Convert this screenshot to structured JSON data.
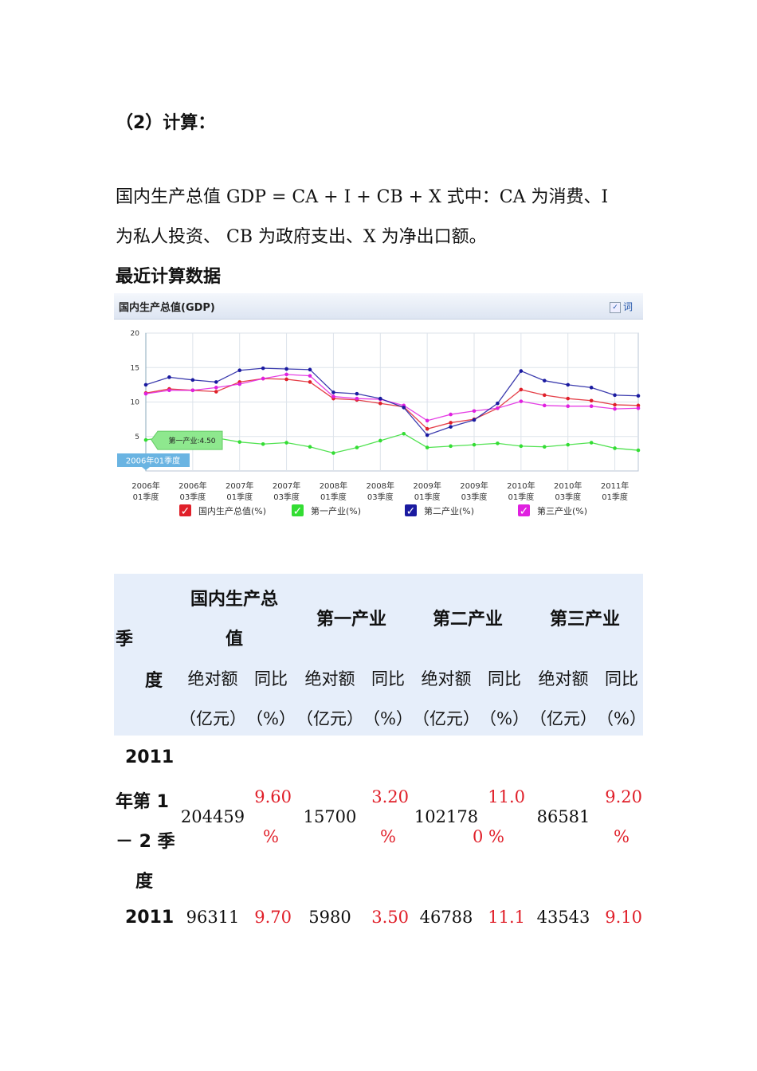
{
  "heading": "（2）计算：",
  "paragraph": {
    "line1": "国内生产总值 GDP = CA + I + CB + X  式中：CA 为消费、I",
    "line2": "为私人投资、  CB 为政府支出、X 为净出口额。"
  },
  "subheading": "最近计算数据",
  "chart_panel": {
    "title": "国内生产总值(GDP)",
    "button_label": "词",
    "tooltip_series": "第一产业:4.50",
    "tooltip_x": "2006年01季度"
  },
  "chart_data": {
    "type": "line",
    "title": "国内生产总值(GDP)",
    "ylim": [
      0,
      20
    ],
    "yticks": [
      "5",
      "10",
      "15",
      "20"
    ],
    "grid": true,
    "legend_placement": "bottom",
    "x": [
      "2006Q1",
      "2006Q2",
      "2006Q3",
      "2006Q4",
      "2007Q1",
      "2007Q2",
      "2007Q3",
      "2007Q4",
      "2008Q1",
      "2008Q2",
      "2008Q3",
      "2008Q4",
      "2009Q1",
      "2009Q2",
      "2009Q3",
      "2009Q4",
      "2010Q1",
      "2010Q2",
      "2010Q3",
      "2010Q4",
      "2011Q1",
      "2011Q2"
    ],
    "xtick_labels": [
      [
        "2006年",
        "01季度"
      ],
      [
        "2006年",
        "03季度"
      ],
      [
        "2007年",
        "01季度"
      ],
      [
        "2007年",
        "03季度"
      ],
      [
        "2008年",
        "01季度"
      ],
      [
        "2008年",
        "03季度"
      ],
      [
        "2009年",
        "01季度"
      ],
      [
        "2009年",
        "03季度"
      ],
      [
        "2010年",
        "01季度"
      ],
      [
        "2010年",
        "03季度"
      ],
      [
        "2011年",
        "01季度"
      ]
    ],
    "series": [
      {
        "name": "国内生产总值(%)",
        "color": "#e0202a",
        "values": [
          11.3,
          11.9,
          11.7,
          11.5,
          12.9,
          13.4,
          13.3,
          12.9,
          10.5,
          10.3,
          9.8,
          9.3,
          6.1,
          7.0,
          7.5,
          9.1,
          11.8,
          11.0,
          10.5,
          10.2,
          9.6,
          9.5
        ]
      },
      {
        "name": "第一产业(%)",
        "color": "#33dd33",
        "values": [
          4.5,
          5.0,
          4.9,
          4.8,
          4.2,
          3.9,
          4.1,
          3.5,
          2.6,
          3.4,
          4.4,
          5.4,
          3.4,
          3.6,
          3.8,
          4.0,
          3.6,
          3.5,
          3.8,
          4.1,
          3.3,
          3.0
        ]
      },
      {
        "name": "第二产业(%)",
        "color": "#1a1aa0",
        "values": [
          12.5,
          13.6,
          13.2,
          12.9,
          14.6,
          14.9,
          14.8,
          14.7,
          11.4,
          11.2,
          10.5,
          9.2,
          5.2,
          6.4,
          7.4,
          9.8,
          14.5,
          13.1,
          12.5,
          12.1,
          11.0,
          10.9
        ]
      },
      {
        "name": "第三产业(%)",
        "color": "#e020e0",
        "values": [
          11.2,
          11.7,
          11.7,
          12.1,
          12.6,
          13.4,
          14.0,
          13.8,
          10.8,
          10.5,
          10.4,
          9.5,
          7.3,
          8.2,
          8.7,
          9.1,
          10.1,
          9.5,
          9.4,
          9.4,
          9.0,
          9.1
        ]
      }
    ]
  },
  "table": {
    "header": {
      "season_top": "季",
      "season_bottom": "度",
      "gdp_line1": "国内生产总",
      "gdp_line2": "值",
      "primary": "第一产业",
      "secondary": "第二产业",
      "tertiary": "第三产业",
      "abs": "绝对额",
      "yoy": "同比",
      "abs_unit": "（亿元）",
      "yoy_unit": "（%）"
    },
    "rows": [
      {
        "season_lines": [
          "2011",
          "年第 1",
          "－ 2 季",
          "度"
        ],
        "gdp_abs": "204459",
        "gdp_yoy": [
          "9.60",
          "%"
        ],
        "primary_abs": "15700",
        "primary_yoy": [
          "3.20",
          "%"
        ],
        "secondary_abs": "102178",
        "secondary_yoy": [
          "11.0",
          "0 %"
        ],
        "tertiary_abs": "86581",
        "tertiary_yoy": [
          "9.20",
          "%"
        ]
      },
      {
        "season_lines": [
          "2011"
        ],
        "gdp_abs": "96311",
        "gdp_yoy": [
          "9.70"
        ],
        "primary_abs": "5980",
        "primary_yoy": [
          "3.50"
        ],
        "secondary_abs": "46788",
        "secondary_yoy": [
          "11.1"
        ],
        "tertiary_abs": "43543",
        "tertiary_yoy": [
          "9.10"
        ]
      }
    ]
  }
}
